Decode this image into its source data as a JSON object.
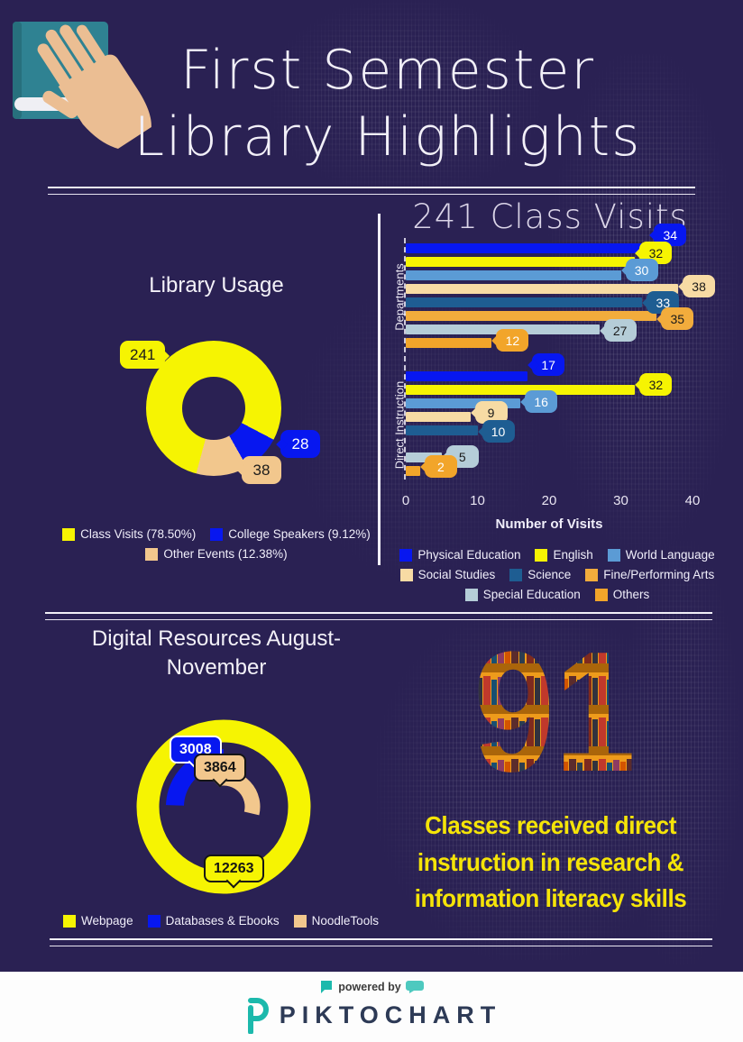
{
  "header": {
    "title_line1": "First Semester",
    "title_line2": "Library Highlights"
  },
  "chart_data": [
    {
      "type": "pie",
      "donut": true,
      "title": "Library Usage",
      "labels": [
        "Class Visits",
        "College Speakers",
        "Other Events"
      ],
      "values": [
        241,
        28,
        38
      ],
      "colors": [
        "#F6F402",
        "#0717F0",
        "#F2C78D"
      ],
      "legend": [
        "Class Visits (78.50%)",
        "College Speakers (9.12%)",
        "Other Events (12.38%)"
      ],
      "legend_position": "bottom"
    },
    {
      "type": "bar",
      "orientation": "horizontal",
      "title": "241 Class Visits",
      "xlabel": "Number of Visits",
      "xlim": [
        0,
        40
      ],
      "xticks": [
        0,
        10,
        20,
        30,
        40
      ],
      "categories": [
        "Departments",
        "Direct Instruction"
      ],
      "series": [
        {
          "name": "Physical Education",
          "color": "#0717F0",
          "text": "#FFFFFF",
          "values": [
            34,
            17
          ]
        },
        {
          "name": "English",
          "color": "#F6F402",
          "text": "#1A1A1A",
          "values": [
            32,
            32
          ]
        },
        {
          "name": "World Language",
          "color": "#5B9BD5",
          "text": "#FFFFFF",
          "values": [
            30,
            16
          ]
        },
        {
          "name": "Social Studies",
          "color": "#F7DBA4",
          "text": "#1A1A1A",
          "values": [
            38,
            9
          ]
        },
        {
          "name": "Science",
          "color": "#1E5D92",
          "text": "#FFFFFF",
          "values": [
            33,
            10
          ]
        },
        {
          "name": "Fine/Performing Arts",
          "color": "#F2AC3C",
          "text": "#1A1A1A",
          "values": [
            35,
            0
          ]
        },
        {
          "name": "Special Education",
          "color": "#B5CDD8",
          "text": "#1A1A1A",
          "values": [
            27,
            5
          ]
        },
        {
          "name": "Others",
          "color": "#F2A52A",
          "text": "#FFFFFF",
          "values": [
            12,
            2
          ]
        }
      ],
      "legend_position": "bottom"
    },
    {
      "type": "ring",
      "title": "Digital Resources August-November",
      "labels": [
        "Webpage",
        "Databases & Ebooks",
        "NoodleTools"
      ],
      "values": [
        12263,
        3008,
        3864
      ],
      "colors": [
        "#F6F402",
        "#0717F0",
        "#F2C78D"
      ],
      "legend_position": "bottom"
    }
  ],
  "stat": {
    "value": "91",
    "caption_lines": [
      "Classes received direct",
      "instruction in research &",
      "information literacy skills"
    ]
  },
  "footer": {
    "powered_by": "powered by",
    "brand": "PIKTOCHART"
  }
}
